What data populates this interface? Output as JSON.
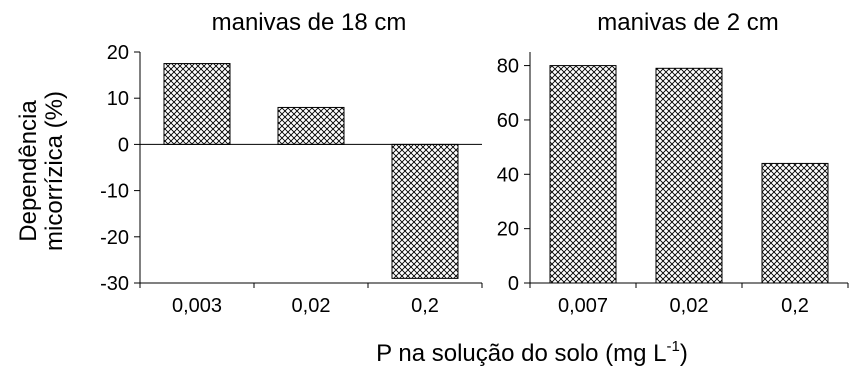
{
  "chart_data": [
    {
      "type": "bar",
      "title": "manivas de 18 cm",
      "categories": [
        "0,003",
        "0,02",
        "0,2"
      ],
      "values": [
        17.5,
        8,
        -29
      ],
      "ylim": [
        -30,
        20
      ],
      "yticks": [
        "20",
        "10",
        "0",
        "-10",
        "-20",
        "-30"
      ],
      "ytick_values": [
        20,
        10,
        0,
        -10,
        -20,
        -30
      ],
      "ylabel": [
        "Dependência",
        "micorrízica (%)"
      ],
      "grid": false,
      "bar_fill": "crosshatch"
    },
    {
      "type": "bar",
      "title": "manivas de 2 cm",
      "categories": [
        "0,007",
        "0,02",
        "0,2"
      ],
      "values": [
        80,
        79,
        44
      ],
      "ylim": [
        0,
        85
      ],
      "yticks": [
        "80",
        "60",
        "40",
        "20",
        "0"
      ],
      "ytick_values": [
        80,
        60,
        40,
        20,
        0
      ],
      "grid": false,
      "bar_fill": "crosshatch"
    }
  ],
  "shared_xlabel": {
    "main": "P na solução do solo (mg L",
    "superscript": "-1",
    "close": ")"
  },
  "colors": {
    "bar_stroke": "#000000",
    "hatch": "#000000",
    "background": "#ffffff"
  }
}
